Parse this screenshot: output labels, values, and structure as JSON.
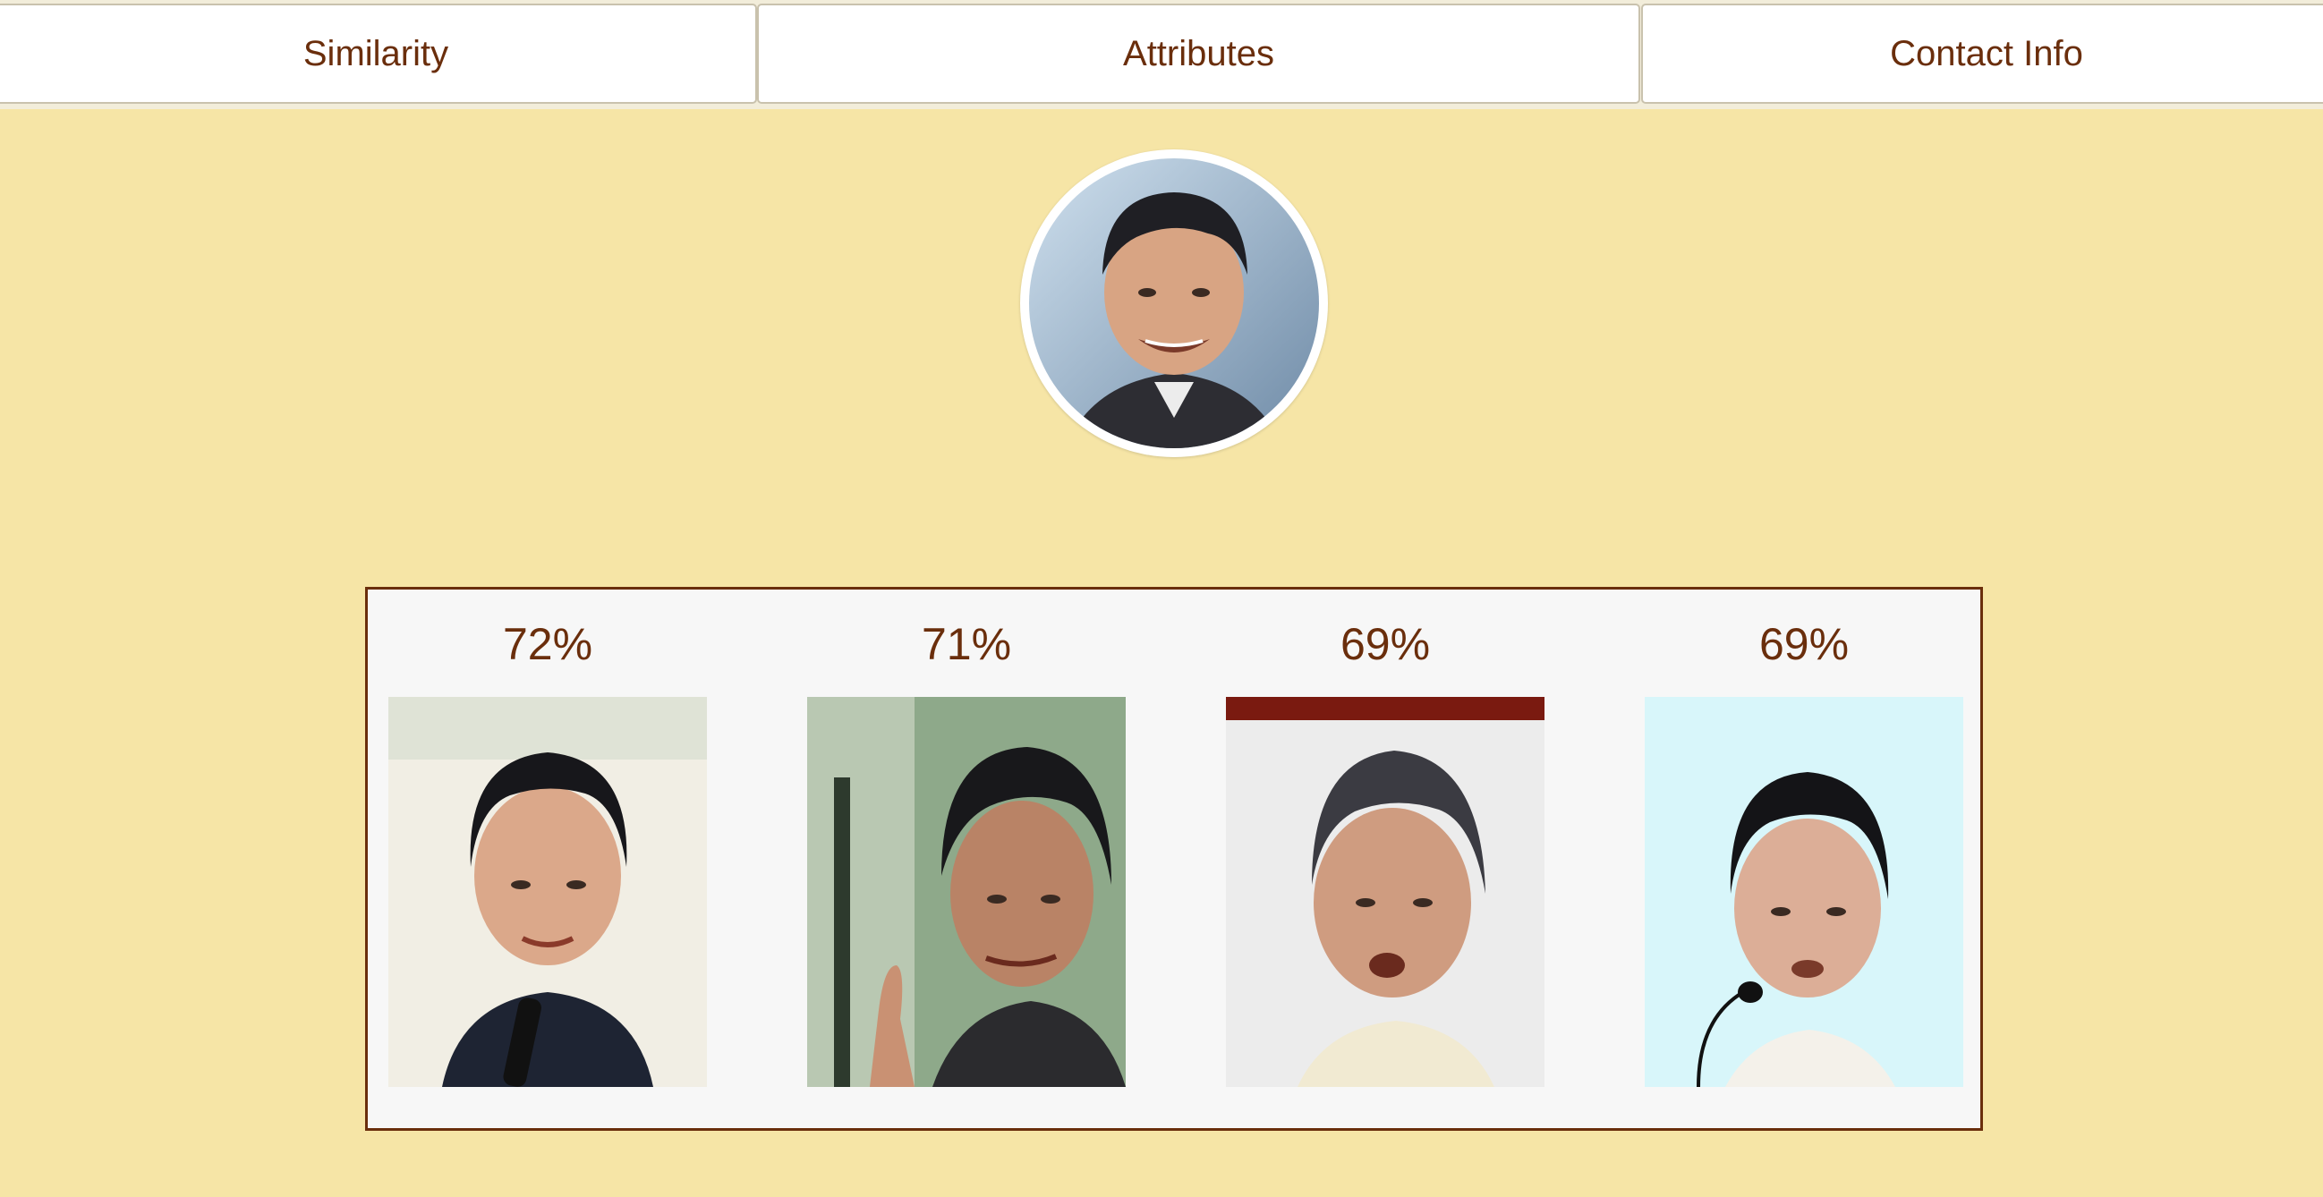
{
  "tabs": [
    {
      "label": "Similarity"
    },
    {
      "label": "Attributes"
    },
    {
      "label": "Contact Info"
    }
  ],
  "profile": {
    "avatar_icon": "person-photo-icon"
  },
  "matches": [
    {
      "score": "72%",
      "photo_icon": "person-photo-icon",
      "background": "#f1eee4"
    },
    {
      "score": "71%",
      "photo_icon": "person-photo-icon",
      "background": "#8ea98a"
    },
    {
      "score": "69%",
      "photo_icon": "person-photo-icon",
      "background": "#ececec"
    },
    {
      "score": "69%",
      "photo_icon": "person-photo-icon",
      "background": "#d8f6fa"
    }
  ],
  "colors": {
    "page_background": "#f6e5a6",
    "accent_text": "#6a2e0c",
    "panel_background": "#f7f7f7",
    "panel_border": "#6a2e0c"
  }
}
